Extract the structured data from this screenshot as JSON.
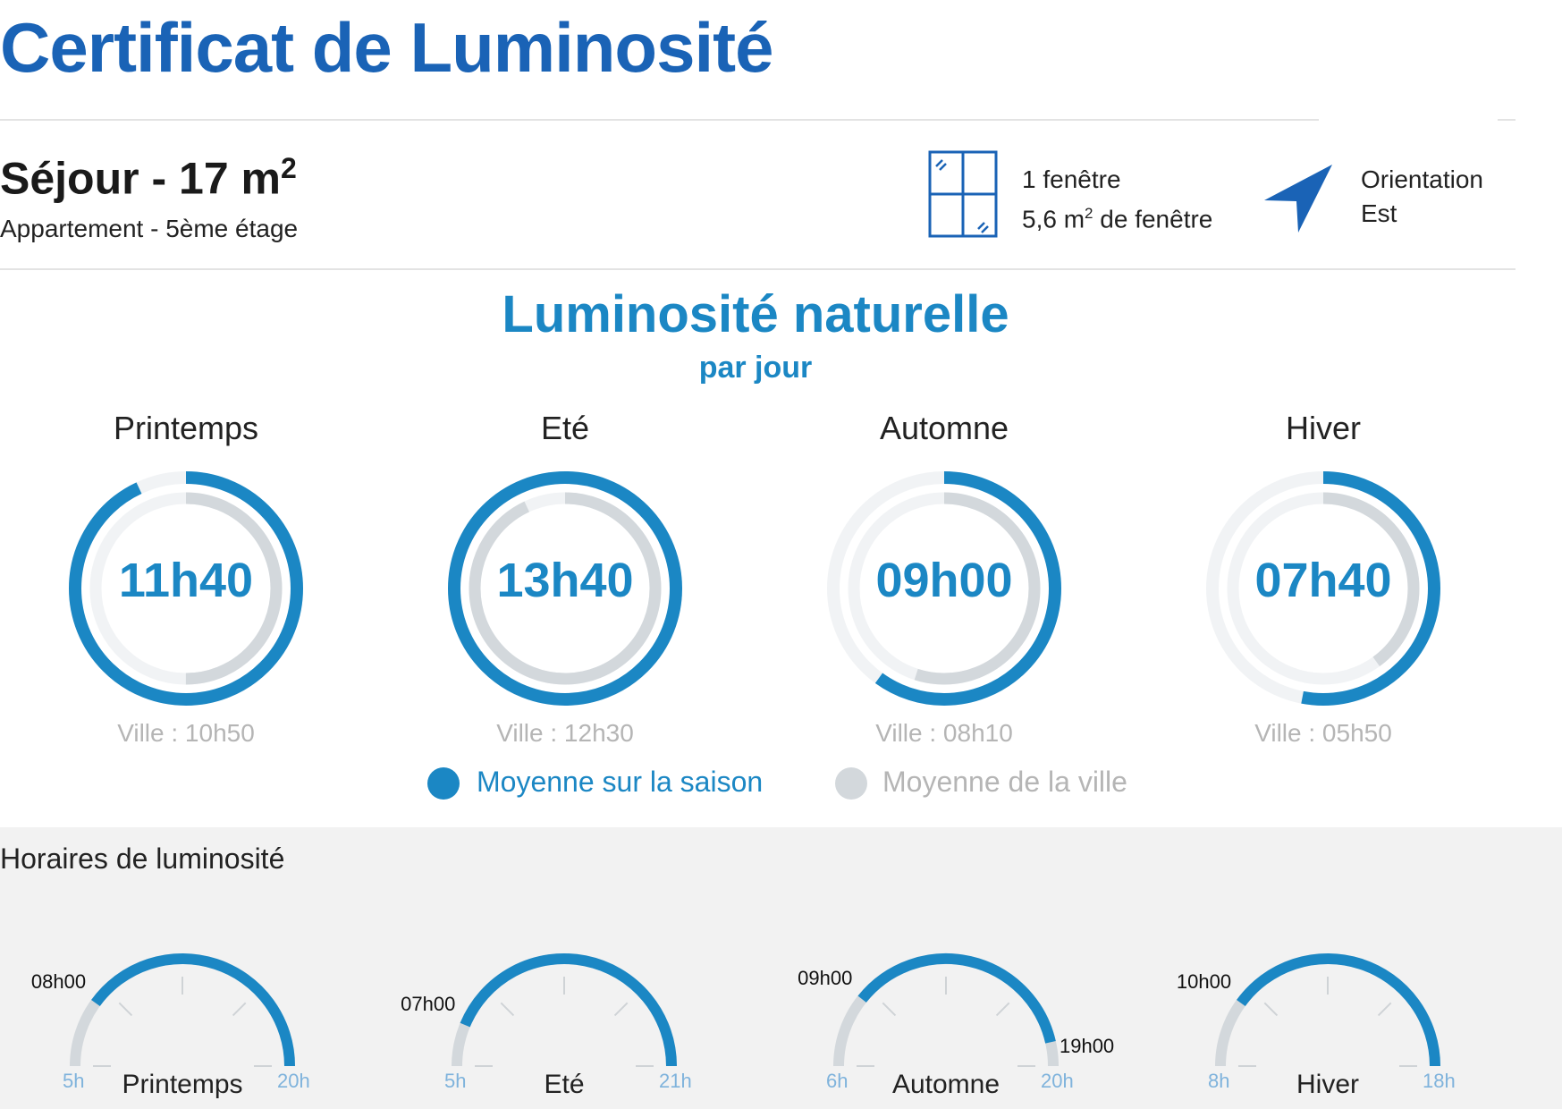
{
  "title": "Certificat de Luminosité",
  "room": {
    "name": "Séjour - 17 m",
    "name_sup": "2",
    "subtitle": "Appartement - 5ème étage"
  },
  "window_info": {
    "line1": "1 fenêtre",
    "line2_pre": "5,6 m",
    "line2_sup": "2",
    "line2_post": " de fenêtre",
    "icon": "window-icon"
  },
  "orientation": {
    "line1": "Orientation",
    "line2": "Est",
    "icon": "compass-arrow-icon"
  },
  "colors": {
    "title": "#1a63b6",
    "accent": "#1b87c4",
    "city": "#d3d8dc",
    "track": "#f1f3f5"
  },
  "luminosity": {
    "title": "Luminosité naturelle",
    "subtitle": "par jour",
    "seasons": [
      {
        "name": "Printemps",
        "value": "11h40",
        "city": "Ville : 10h50",
        "season_fraction": 0.93,
        "city_fraction": 0.5
      },
      {
        "name": "Eté",
        "value": "13h40",
        "city": "Ville : 12h30",
        "season_fraction": 1.0,
        "city_fraction": 0.93
      },
      {
        "name": "Automne",
        "value": "09h00",
        "city": "Ville : 08h10",
        "season_fraction": 0.6,
        "city_fraction": 0.55
      },
      {
        "name": "Hiver",
        "value": "07h40",
        "city": "Ville : 05h50",
        "season_fraction": 0.53,
        "city_fraction": 0.4
      }
    ],
    "legend": {
      "season": "Moyenne sur la saison",
      "city": "Moyenne de la ville"
    }
  },
  "horaires": {
    "title": "Horaires de luminosité",
    "gauges": [
      {
        "name": "Printemps",
        "min": "5h",
        "max": "20h",
        "start": "08h00",
        "end": "",
        "min_h": 5,
        "max_h": 20,
        "start_h": 8,
        "end_h": 20
      },
      {
        "name": "Eté",
        "min": "5h",
        "max": "21h",
        "start": "07h00",
        "end": "",
        "min_h": 5,
        "max_h": 21,
        "start_h": 7,
        "end_h": 21
      },
      {
        "name": "Automne",
        "min": "6h",
        "max": "20h",
        "start": "09h00",
        "end": "19h00",
        "min_h": 6,
        "max_h": 20,
        "start_h": 9,
        "end_h": 19
      },
      {
        "name": "Hiver",
        "min": "8h",
        "max": "18h",
        "start": "10h00",
        "end": "",
        "min_h": 8,
        "max_h": 18,
        "start_h": 10,
        "end_h": 18
      }
    ]
  }
}
